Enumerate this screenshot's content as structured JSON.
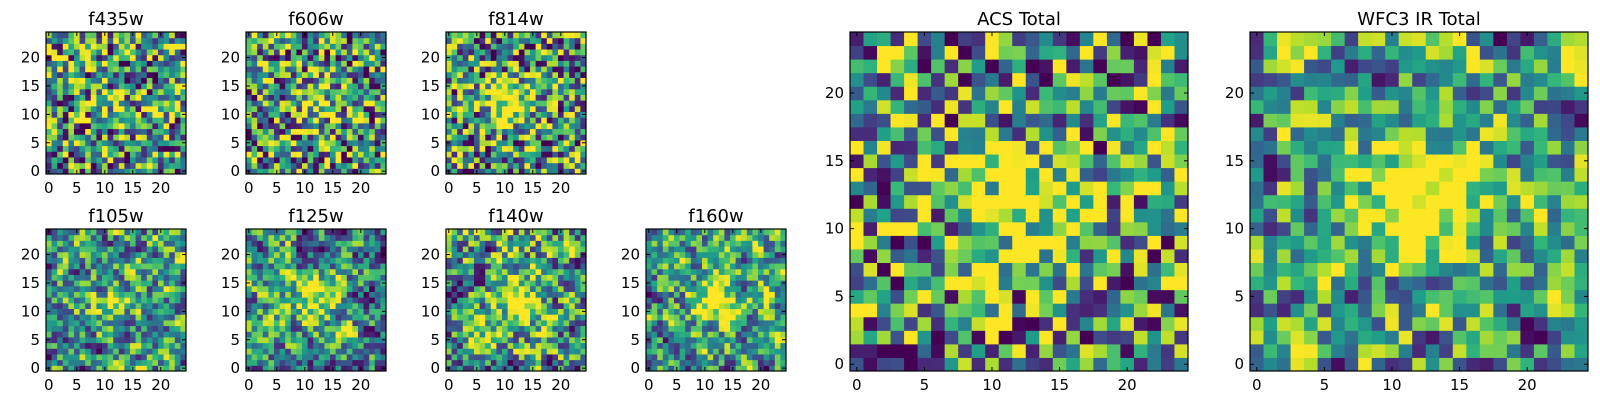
{
  "chart_data": [
    {
      "type": "heatmap",
      "title": "f435w",
      "xlim": [
        0,
        24
      ],
      "ylim": [
        0,
        24
      ],
      "xticks": [
        0,
        5,
        10,
        15,
        20
      ],
      "yticks": [
        0,
        5,
        10,
        15,
        20
      ],
      "colormap": "viridis",
      "seed": 11,
      "smooth": 0,
      "peak": 0.15,
      "peak_center": [
        12,
        12
      ]
    },
    {
      "type": "heatmap",
      "title": "f606w",
      "xlim": [
        0,
        24
      ],
      "ylim": [
        0,
        24
      ],
      "xticks": [
        0,
        5,
        10,
        15,
        20
      ],
      "yticks": [
        0,
        5,
        10,
        15,
        20
      ],
      "colormap": "viridis",
      "seed": 23,
      "smooth": 0,
      "peak": 0.35,
      "peak_center": [
        12,
        12
      ]
    },
    {
      "type": "heatmap",
      "title": "f814w",
      "xlim": [
        0,
        24
      ],
      "ylim": [
        0,
        24
      ],
      "xticks": [
        0,
        5,
        10,
        15,
        20
      ],
      "yticks": [
        0,
        5,
        10,
        15,
        20
      ],
      "colormap": "viridis",
      "seed": 37,
      "smooth": 0,
      "peak": 0.6,
      "peak_center": [
        11,
        12
      ]
    },
    {
      "type": "heatmap",
      "title": "f105w",
      "xlim": [
        0,
        24
      ],
      "ylim": [
        0,
        24
      ],
      "xticks": [
        0,
        5,
        10,
        15,
        20
      ],
      "yticks": [
        0,
        5,
        10,
        15,
        20
      ],
      "colormap": "viridis",
      "seed": 41,
      "smooth": 1,
      "peak": 0.3,
      "peak_center": [
        12,
        12
      ]
    },
    {
      "type": "heatmap",
      "title": "f125w",
      "xlim": [
        0,
        24
      ],
      "ylim": [
        0,
        24
      ],
      "xticks": [
        0,
        5,
        10,
        15,
        20
      ],
      "yticks": [
        0,
        5,
        10,
        15,
        20
      ],
      "colormap": "viridis",
      "seed": 53,
      "smooth": 1,
      "peak": 0.45,
      "peak_center": [
        12,
        12
      ]
    },
    {
      "type": "heatmap",
      "title": "f140w",
      "xlim": [
        0,
        24
      ],
      "ylim": [
        0,
        24
      ],
      "xticks": [
        0,
        5,
        10,
        15,
        20
      ],
      "yticks": [
        0,
        5,
        10,
        15,
        20
      ],
      "colormap": "viridis",
      "seed": 67,
      "smooth": 1,
      "peak": 0.55,
      "peak_center": [
        12,
        12
      ]
    },
    {
      "type": "heatmap",
      "title": "f160w",
      "xlim": [
        0,
        24
      ],
      "ylim": [
        0,
        24
      ],
      "xticks": [
        0,
        5,
        10,
        15,
        20
      ],
      "yticks": [
        0,
        5,
        10,
        15,
        20
      ],
      "colormap": "viridis",
      "seed": 79,
      "smooth": 1,
      "peak": 0.6,
      "peak_center": [
        12,
        12
      ]
    },
    {
      "type": "heatmap",
      "title": "ACS Total",
      "xlim": [
        0,
        24
      ],
      "ylim": [
        0,
        24
      ],
      "xticks": [
        0,
        5,
        10,
        15,
        20
      ],
      "yticks": [
        0,
        5,
        10,
        15,
        20
      ],
      "colormap": "viridis",
      "seed": 97,
      "smooth": 0,
      "peak": 0.55,
      "peak_center": [
        12,
        12
      ]
    },
    {
      "type": "heatmap",
      "title": "WFC3 IR Total",
      "xlim": [
        0,
        24
      ],
      "ylim": [
        0,
        24
      ],
      "xticks": [
        0,
        5,
        10,
        15,
        20
      ],
      "yticks": [
        0,
        5,
        10,
        15,
        20
      ],
      "colormap": "viridis",
      "seed": 113,
      "smooth": 1,
      "peak": 0.7,
      "peak_center": [
        12,
        12
      ]
    }
  ]
}
